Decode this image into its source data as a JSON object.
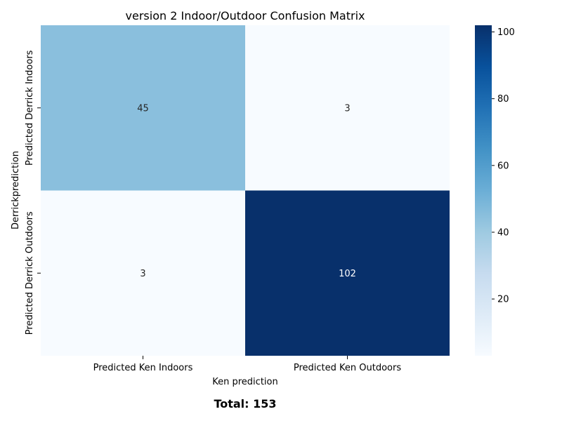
{
  "chart_data": {
    "type": "heatmap",
    "title": "version 2 Indoor/Outdoor Confusion Matrix",
    "xlabel": "Ken prediction",
    "ylabel": "Derrickprediction",
    "x_categories": [
      "Predicted Ken Indoors",
      "Predicted Ken Outdoors"
    ],
    "y_categories": [
      "Predicted Derrick Indoors",
      "Predicted Derrick Outdoors"
    ],
    "values": [
      [
        45,
        3
      ],
      [
        3,
        102
      ]
    ],
    "colormap": "Blues",
    "colorbar": {
      "min": 3,
      "max": 102,
      "ticks": [
        20,
        40,
        60,
        80,
        100
      ]
    },
    "annotation_colors": {
      "light": "#262626",
      "dark": "#ffffff"
    }
  },
  "footer": {
    "total_label": "Total: 153"
  }
}
